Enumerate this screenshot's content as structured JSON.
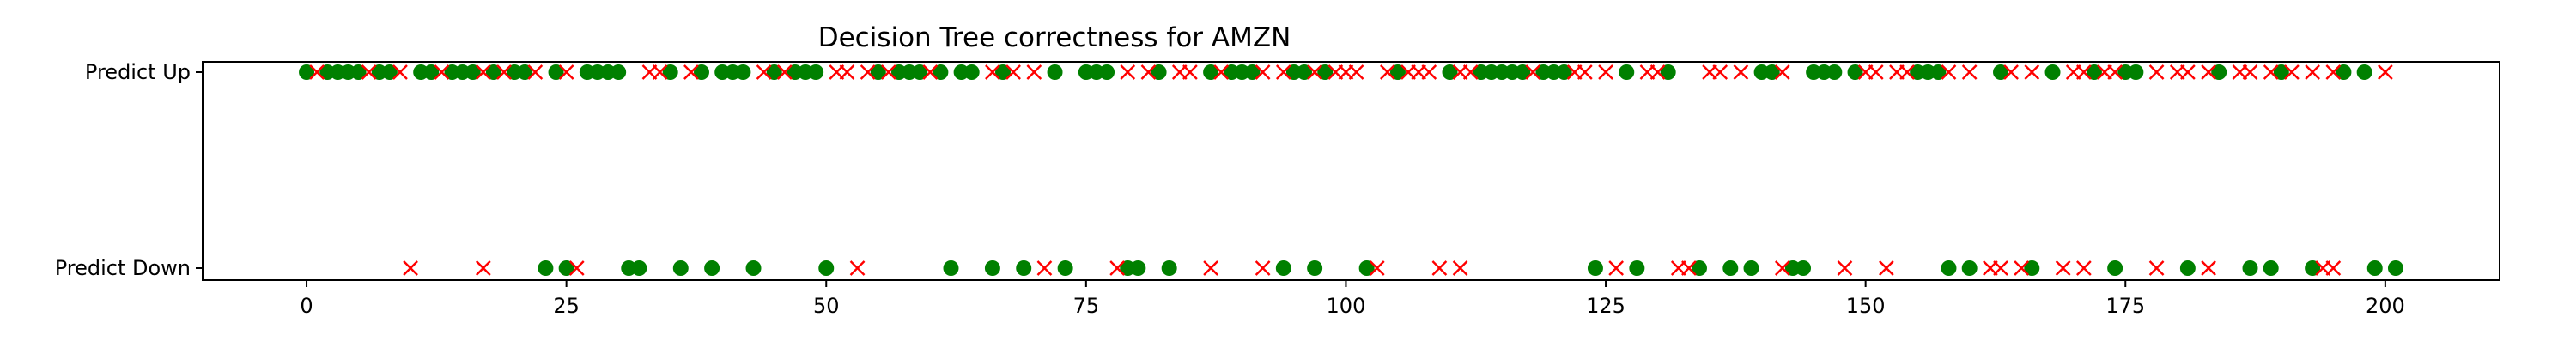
{
  "chart_data": {
    "type": "scatter",
    "title": "Decision Tree correctness for AMZN",
    "xlabel": "",
    "ylabel": "",
    "xlim": [
      -10,
      211
    ],
    "xticks": [
      0,
      25,
      50,
      75,
      100,
      125,
      150,
      175,
      200
    ],
    "ycategories": [
      "Predict Down",
      "Predict Up"
    ],
    "grid": false,
    "legend": "none",
    "colors": {
      "correct": "#008000",
      "incorrect": "#ff0000"
    },
    "markers": {
      "correct": "circle",
      "incorrect": "x"
    },
    "series": [
      {
        "marker": "circle",
        "category": "Predict Up",
        "x": [
          0,
          2,
          3,
          4,
          5,
          7,
          8,
          11,
          12,
          14,
          15,
          16,
          18,
          20,
          21,
          24,
          27,
          28,
          29,
          30,
          35,
          38,
          40,
          41,
          42,
          45,
          47,
          48,
          49,
          55,
          57,
          58,
          59,
          61,
          63,
          64,
          67,
          72,
          75,
          76,
          77,
          82,
          87,
          89,
          90,
          91,
          95,
          96,
          98,
          105,
          110,
          113,
          114,
          115,
          116,
          117,
          119,
          120,
          121,
          127,
          131,
          140,
          141,
          145,
          146,
          147,
          149,
          155,
          156,
          157,
          163,
          168,
          172,
          175,
          176,
          184,
          190,
          196,
          198
        ]
      },
      {
        "marker": "x",
        "category": "Predict Up",
        "x": [
          1,
          6,
          9,
          13,
          17,
          19,
          22,
          25,
          33,
          34,
          37,
          44,
          46,
          51,
          52,
          54,
          56,
          60,
          66,
          68,
          70,
          79,
          81,
          84,
          85,
          88,
          92,
          94,
          97,
          99,
          100,
          101,
          104,
          106,
          107,
          108,
          111,
          112,
          118,
          122,
          123,
          125,
          129,
          130,
          135,
          136,
          138,
          142,
          150,
          151,
          153,
          154,
          158,
          160,
          164,
          166,
          170,
          171,
          173,
          174,
          178,
          180,
          181,
          183,
          186,
          187,
          189,
          191,
          193,
          195,
          200
        ]
      },
      {
        "marker": "circle",
        "category": "Predict Down",
        "x": [
          23,
          25,
          31,
          32,
          36,
          39,
          43,
          50,
          62,
          66,
          69,
          73,
          79,
          80,
          83,
          94,
          97,
          102,
          124,
          128,
          134,
          137,
          139,
          143,
          144,
          158,
          160,
          166,
          174,
          181,
          187,
          189,
          193,
          199,
          201
        ]
      },
      {
        "marker": "x",
        "category": "Predict Down",
        "x": [
          10,
          17,
          26,
          53,
          71,
          78,
          87,
          92,
          103,
          109,
          111,
          126,
          132,
          133,
          142,
          148,
          152,
          162,
          163,
          165,
          169,
          171,
          178,
          183,
          194,
          195
        ]
      }
    ]
  }
}
